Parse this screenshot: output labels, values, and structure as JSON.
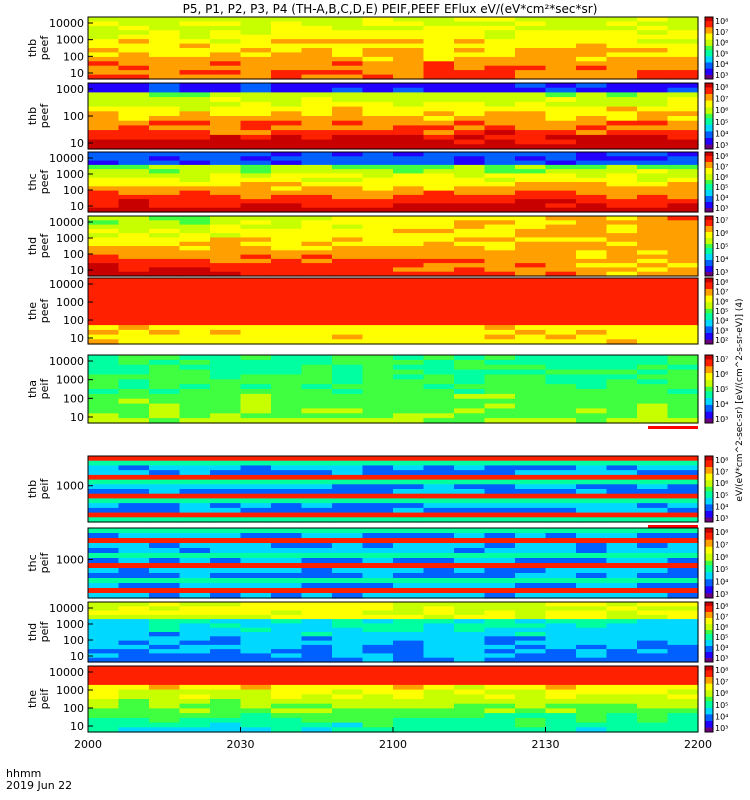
{
  "title": "P5, P1, P2, P3, P4 (TH-A,B,C,D,E) PEIF,PEEF EFlux eV/(eV*cm²*sec*sr)",
  "footer": {
    "hhmm": "hhmm",
    "date": "2019 Jun 22"
  },
  "colors": {
    "frame": "#000000",
    "flag_bar": "#ff0000",
    "colormap": [
      "#6b007f",
      "#2200ff",
      "#0060ff",
      "#00d8ff",
      "#00ffa0",
      "#40ff40",
      "#c8ff00",
      "#ffff00",
      "#ffa000",
      "#ff2000",
      "#c80000"
    ]
  },
  "chart_data": [
    {
      "type": "heatmap",
      "panel": "thb-peef",
      "ylabel": [
        "thb",
        "peef"
      ],
      "yticks": [
        "10000",
        "1000",
        "100",
        "10"
      ],
      "cbar_ticks": [
        "10⁸",
        "10⁷",
        "10⁶",
        "10⁵",
        "10⁴",
        "10³"
      ],
      "pattern": "warm"
    },
    {
      "type": "heatmap",
      "panel": "thb-peef",
      "ylabel": [
        "thb",
        "peef"
      ],
      "yticks": [
        "1000",
        "100",
        "10"
      ],
      "cbar_ticks": [
        "10⁸",
        "10⁷",
        "10⁶",
        "10⁵",
        "10⁴",
        "10³"
      ],
      "pattern": "layered_dark_top"
    },
    {
      "type": "heatmap",
      "panel": "thc-peef",
      "ylabel": [
        "thc",
        "peef"
      ],
      "yticks": [
        "10000",
        "1000",
        "100",
        "10"
      ],
      "cbar_ticks": [
        "10⁸",
        "10⁷",
        "10⁶",
        "10⁵",
        "10⁴",
        "10³"
      ],
      "pattern": "layered_dark_top_gap"
    },
    {
      "type": "heatmap",
      "panel": "thd-peef",
      "ylabel": [
        "thd",
        "peef"
      ],
      "yticks": [
        "10000",
        "1000",
        "100",
        "10"
      ],
      "cbar_ticks": [
        "10⁷",
        "10⁶",
        "10⁵",
        "10⁴",
        "10³"
      ],
      "pattern": "ramp"
    },
    {
      "type": "heatmap",
      "panel": "the-peef",
      "ylabel": [
        "the",
        "peef"
      ],
      "yticks": [
        "10000",
        "1000",
        "100",
        "10"
      ],
      "cbar_ticks": [
        "10⁸",
        "10⁷",
        "10⁶",
        "10⁵",
        "10⁴",
        "10³",
        "10²"
      ],
      "pattern": "hot"
    },
    {
      "type": "heatmap",
      "panel": "tha-peif",
      "ylabel": [
        "tha",
        "peif"
      ],
      "yticks": [
        "10000",
        "1000",
        "100",
        "10"
      ],
      "cbar_ticks": [
        "10⁷",
        "10⁶",
        "10⁵",
        "10⁴",
        "10³"
      ],
      "pattern": "cool",
      "flag": true
    },
    {
      "type": "heatmap",
      "panel": "thb-peif",
      "ylabel": [
        "thb",
        "peif"
      ],
      "yticks": [
        "1000"
      ],
      "cbar_ticks": [
        "10⁸",
        "10⁷",
        "10⁶",
        "10⁵",
        "10⁴",
        "10³"
      ],
      "pattern": "bands",
      "flag": true
    },
    {
      "type": "heatmap",
      "panel": "thc-peif",
      "ylabel": [
        "thc",
        "peif"
      ],
      "yticks": [
        "1000"
      ],
      "cbar_ticks": [
        "10⁸",
        "10⁷",
        "10⁶",
        "10⁵",
        "10⁴",
        "10³"
      ],
      "pattern": "bands2"
    },
    {
      "type": "heatmap",
      "panel": "thd-peif",
      "ylabel": [
        "thd",
        "peif"
      ],
      "yticks": [
        "10000",
        "1000",
        "100",
        "10"
      ],
      "cbar_ticks": [
        "10⁸",
        "10⁷",
        "10⁶",
        "10⁵",
        "10⁴",
        "10³"
      ],
      "pattern": "iondark"
    },
    {
      "type": "heatmap",
      "panel": "the-peif",
      "ylabel": [
        "the",
        "peif"
      ],
      "yticks": [
        "10000",
        "1000",
        "100",
        "10"
      ],
      "cbar_ticks": [
        "10⁸",
        "10⁷",
        "10⁶",
        "10⁵",
        "10⁴",
        "10³"
      ],
      "pattern": "ionhot"
    }
  ],
  "xaxis": {
    "ticks": [
      "2000",
      "2030",
      "2100",
      "2130",
      "2200"
    ]
  },
  "cbar_label_upper": "eV/(eV*cm^2-sec-sr) [eV/(cm^2-s-sr-eV)] (4)",
  "cbar_label_lower": "[eV/(cm^2-s-sr-eV)]"
}
